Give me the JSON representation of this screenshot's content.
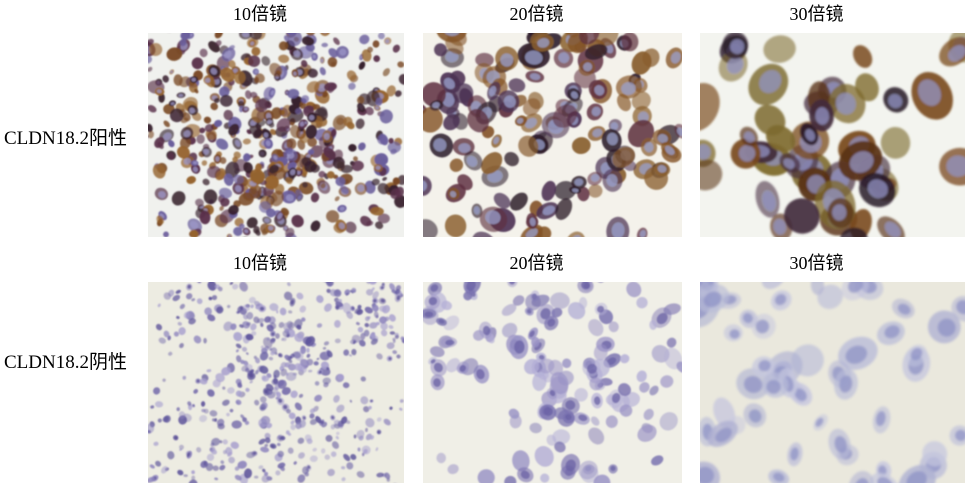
{
  "figure": {
    "rows": [
      {
        "label": "CLDN18.2阳性",
        "columns": [
          "10倍镜",
          "20倍镜",
          "30倍镜"
        ]
      },
      {
        "label": "CLDN18.2阴性",
        "columns": [
          "10倍镜",
          "20倍镜",
          "30倍镜"
        ]
      }
    ],
    "stain_colors": {
      "positive_membrane_brown": "#7a4a26",
      "hematoxylin_blue": "#8f93c6",
      "background_cream": "#ecebe1"
    }
  },
  "panels": [
    {
      "id": "pos-10x",
      "bg": "#f0f1ee",
      "seed": 11,
      "count": 520,
      "rmin": 2.5,
      "rmax": 7,
      "clusters": 16,
      "spread": 0.6,
      "cr": 95,
      "body_colors": [
        "#59304a",
        "#7a4a26",
        "#38222e",
        "#96642e",
        "#6a5e9c"
      ],
      "nucleus_color": "#9c97c8",
      "nucleus_p": 0.22,
      "omin": 0.6,
      "omax": 1.0,
      "blur": 0.7
    },
    {
      "id": "pos-20x",
      "bg": "#f4f2eb",
      "seed": 22,
      "count": 165,
      "rmin": 6,
      "rmax": 13,
      "clusters": 9,
      "spread": 0.6,
      "cr": 120,
      "body_colors": [
        "#845426",
        "#4c3254",
        "#5e3040",
        "#2f1f2c",
        "#8a6030"
      ],
      "nucleus_color": "#9aa0cc",
      "nucleus_p": 0.5,
      "omin": 0.55,
      "omax": 0.95,
      "blur": 0.9
    },
    {
      "id": "pos-30x",
      "bg": "#f3f4ef",
      "seed": 33,
      "count": 60,
      "rmin": 10,
      "rmax": 20,
      "clusters": 6,
      "spread": 0.55,
      "cr": 150,
      "body_colors": [
        "#7a4a1e",
        "#5a3318",
        "#432a3c",
        "#241424",
        "#7d6a2e"
      ],
      "nucleus_color": "#9193c4",
      "nucleus_p": 0.75,
      "omin": 0.55,
      "omax": 0.95,
      "blur": 1.1
    },
    {
      "id": "neg-10x",
      "bg": "#edece2",
      "seed": 44,
      "count": 560,
      "rmin": 1.5,
      "rmax": 4.5,
      "clusters": 13,
      "spread": 0.65,
      "cr": 85,
      "body_colors": [
        "#8d84bd",
        "#6f65a8",
        "#a79fce",
        "#5c529a"
      ],
      "nucleus_color": "#554b93",
      "nucleus_p": 0.1,
      "omin": 0.4,
      "omax": 0.9,
      "blur": 0.7
    },
    {
      "id": "neg-20x",
      "bg": "#f0efe7",
      "seed": 55,
      "count": 150,
      "rmin": 4.5,
      "rmax": 9.5,
      "clusters": 9,
      "spread": 0.6,
      "cr": 105,
      "body_colors": [
        "#9992c5",
        "#b4afd6",
        "#7a72b0"
      ],
      "nucleus_color": "#6a62a4",
      "nucleus_p": 0.35,
      "omin": 0.45,
      "omax": 0.85,
      "blur": 0.9
    },
    {
      "id": "neg-30x",
      "bg": "#eae8dd",
      "seed": 66,
      "count": 62,
      "rmin": 9,
      "rmax": 17,
      "clusters": 6,
      "spread": 0.5,
      "cr": 140,
      "body_colors": [
        "#c5c6de",
        "#b9bbd8",
        "#aeb0d2"
      ],
      "nucleus_color": "#8f93c6",
      "nucleus_p": 0.85,
      "omin": 0.5,
      "omax": 0.8,
      "blur": 1.2
    }
  ]
}
